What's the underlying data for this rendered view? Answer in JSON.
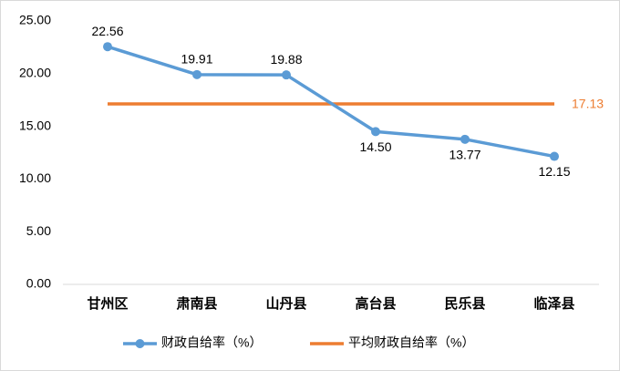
{
  "chart_data": {
    "type": "line",
    "categories": [
      "甘州区",
      "肃南县",
      "山丹县",
      "高台县",
      "民乐县",
      "临泽县"
    ],
    "series": [
      {
        "name": "财政自给率（%）",
        "color": "#5b9bd5",
        "values": [
          22.56,
          19.91,
          19.88,
          14.5,
          13.77,
          12.15
        ],
        "value_labels": [
          "22.56",
          "19.91",
          "19.88",
          "14.50",
          "13.77",
          "12.15"
        ]
      },
      {
        "name": "平均财政自给率（%）",
        "color": "#ed7d31",
        "values": [
          17.13,
          17.13,
          17.13,
          17.13,
          17.13,
          17.13
        ]
      }
    ],
    "ylim": [
      0,
      25
    ],
    "yticks": [
      {
        "value": 0,
        "label": "0.00"
      },
      {
        "value": 5,
        "label": "5.00"
      },
      {
        "value": 10,
        "label": "10.00"
      },
      {
        "value": 15,
        "label": "15.00"
      },
      {
        "value": 20,
        "label": "20.00"
      },
      {
        "value": 25,
        "label": "25.00"
      }
    ],
    "grid": false,
    "legend": "bottom"
  }
}
